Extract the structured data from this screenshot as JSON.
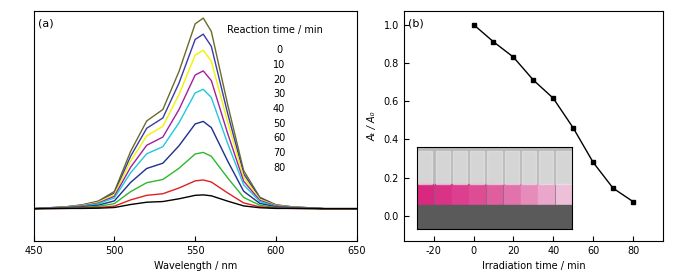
{
  "chart_data": [
    {
      "type": "line",
      "panel_label": "(a)",
      "xlabel": "Wavelength / nm",
      "legend_title": "Reaction time / min",
      "tick_labels": "x",
      "xlim": [
        450,
        650
      ],
      "xticks": [
        450,
        500,
        550,
        600,
        650
      ],
      "ylim": [
        0,
        1
      ],
      "yticks": [],
      "x": [
        450,
        460,
        470,
        480,
        490,
        500,
        510,
        520,
        530,
        540,
        550,
        555,
        560,
        570,
        580,
        590,
        600,
        610,
        620,
        630,
        640,
        650
      ],
      "series": [
        {
          "name": "0",
          "color": "#6b6b2a",
          "values": [
            0.14,
            0.144,
            0.148,
            0.157,
            0.173,
            0.215,
            0.389,
            0.522,
            0.572,
            0.738,
            0.945,
            0.97,
            0.912,
            0.597,
            0.306,
            0.19,
            0.157,
            0.148,
            0.144,
            0.14,
            0.14,
            0.14
          ]
        },
        {
          "name": "10",
          "color": "#3a3aa8",
          "values": [
            0.14,
            0.144,
            0.148,
            0.155,
            0.17,
            0.208,
            0.368,
            0.49,
            0.535,
            0.687,
            0.877,
            0.9,
            0.847,
            0.558,
            0.292,
            0.186,
            0.155,
            0.148,
            0.144,
            0.14,
            0.14,
            0.14
          ]
        },
        {
          "name": "20",
          "color": "#f2f200",
          "values": [
            0.14,
            0.143,
            0.147,
            0.154,
            0.168,
            0.202,
            0.347,
            0.457,
            0.499,
            0.637,
            0.809,
            0.83,
            0.782,
            0.52,
            0.278,
            0.181,
            0.154,
            0.147,
            0.143,
            0.14,
            0.14,
            0.14
          ]
        },
        {
          "name": "30",
          "color": "#a020a0",
          "values": [
            0.14,
            0.143,
            0.146,
            0.152,
            0.164,
            0.194,
            0.32,
            0.416,
            0.452,
            0.572,
            0.722,
            0.74,
            0.698,
            0.47,
            0.26,
            0.176,
            0.152,
            0.146,
            0.143,
            0.14,
            0.14,
            0.14
          ]
        },
        {
          "name": "40",
          "color": "#20c8e0",
          "values": [
            0.14,
            0.143,
            0.145,
            0.15,
            0.161,
            0.187,
            0.296,
            0.379,
            0.41,
            0.514,
            0.644,
            0.66,
            0.624,
            0.426,
            0.244,
            0.171,
            0.15,
            0.145,
            0.143,
            0.14,
            0.14,
            0.14
          ]
        },
        {
          "name": "50",
          "color": "#1f2f8f",
          "values": [
            0.14,
            0.142,
            0.144,
            0.148,
            0.155,
            0.174,
            0.254,
            0.315,
            0.338,
            0.414,
            0.509,
            0.52,
            0.493,
            0.349,
            0.216,
            0.163,
            0.148,
            0.144,
            0.142,
            0.14,
            0.14,
            0.14
          ]
        },
        {
          "name": "60",
          "color": "#2db82d",
          "values": [
            0.14,
            0.141,
            0.142,
            0.145,
            0.15,
            0.162,
            0.214,
            0.253,
            0.267,
            0.316,
            0.378,
            0.385,
            0.368,
            0.275,
            0.189,
            0.155,
            0.145,
            0.142,
            0.141,
            0.14,
            0.14,
            0.14
          ]
        },
        {
          "name": "70",
          "color": "#e02020",
          "values": [
            0.14,
            0.141,
            0.141,
            0.143,
            0.145,
            0.151,
            0.178,
            0.198,
            0.205,
            0.23,
            0.261,
            0.265,
            0.256,
            0.209,
            0.165,
            0.148,
            0.143,
            0.141,
            0.141,
            0.14,
            0.14,
            0.14
          ]
        },
        {
          "name": "80",
          "color": "#000000",
          "values": [
            0.14,
            0.14,
            0.141,
            0.141,
            0.142,
            0.145,
            0.158,
            0.168,
            0.171,
            0.183,
            0.198,
            0.2,
            0.196,
            0.173,
            0.152,
            0.144,
            0.141,
            0.141,
            0.14,
            0.14,
            0.14,
            0.14
          ]
        }
      ]
    },
    {
      "type": "line",
      "panel_label": "(b)",
      "xlabel": "Irradiation time / min",
      "ylabel": "Aₜ / A₀",
      "color": "#000000",
      "marker": "square",
      "line_style": "solid",
      "xlim": [
        -35,
        95
      ],
      "xticks": [
        -20,
        0,
        20,
        40,
        60,
        80
      ],
      "ylim": [
        -0.13,
        1.07
      ],
      "yticks": [
        {
          "value": 0.0,
          "label": "0.0"
        },
        0.2,
        0.4,
        0.6,
        0.8,
        {
          "value": 1.0,
          "label": "1.0"
        }
      ],
      "x": [
        0,
        10,
        20,
        30,
        40,
        50,
        60,
        70,
        80
      ],
      "values": [
        1.0,
        0.91,
        0.83,
        0.71,
        0.615,
        0.46,
        0.28,
        0.145,
        0.075
      ]
    }
  ]
}
